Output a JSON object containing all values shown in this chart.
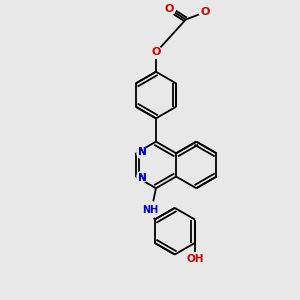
{
  "background_color": "#e8e8e8",
  "bond_color": "#000000",
  "n_color": "#0000cc",
  "o_color": "#cc0000",
  "lw": 1.3,
  "figsize": [
    3.0,
    3.0
  ],
  "dpi": 100,
  "xlim": [
    0,
    10
  ],
  "ylim": [
    0,
    10
  ]
}
